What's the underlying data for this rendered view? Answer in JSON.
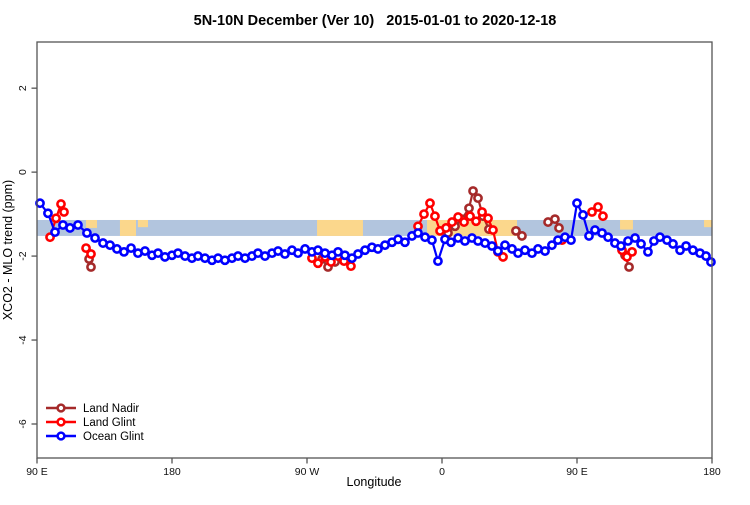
{
  "legend": {
    "items": [
      {
        "label": "Land Nadir",
        "color": "#A52A2A"
      },
      {
        "label": "Land Glint",
        "color": "#FF0000"
      },
      {
        "label": "Ocean Glint",
        "color": "#0000FF"
      }
    ]
  },
  "chart_data": {
    "type": "line",
    "marker": "open-circle",
    "title": "5N-10N December (Ver 10)   2015-01-01 to 2020-12-18",
    "xlabel": "Longitude",
    "ylabel": "XCO2 - MLO trend (ppm)",
    "xlim": [
      -270,
      180
    ],
    "ylim": [
      -6.81,
      3.1
    ],
    "grid": false,
    "x_ticks": [
      {
        "lon": -270,
        "label": "90 E"
      },
      {
        "lon": -180,
        "label": "180"
      },
      {
        "lon": -90,
        "label": "90 W"
      },
      {
        "lon": 0,
        "label": "0"
      },
      {
        "lon": 90,
        "label": "90 E"
      },
      {
        "lon": 180,
        "label": "180"
      }
    ],
    "y_ticks": [
      {
        "v": 2,
        "label": "2"
      },
      {
        "v": 0,
        "label": "0"
      },
      {
        "v": -2,
        "label": "-2"
      },
      {
        "v": -4,
        "label": "-4"
      },
      {
        "v": -6,
        "label": "-6"
      }
    ],
    "reference_band": {
      "description": "5N-10N latitude map strip: ocean with land silhouettes",
      "ocean_color": "#B2C5DE",
      "land_color": "#FBD78C",
      "v_top": -1.14,
      "v_bottom": -1.52,
      "land_segments": [
        {
          "lon1": -237.3,
          "lon2": -230.0,
          "frac": 0.5,
          "anchor": "top"
        },
        {
          "lon1": -214.7,
          "lon2": -204.0,
          "frac": 1.0,
          "anchor": "top"
        },
        {
          "lon1": -202.7,
          "lon2": -196.0,
          "frac": 0.45,
          "anchor": "top"
        },
        {
          "lon1": -83.3,
          "lon2": -52.7,
          "frac": 1.0,
          "anchor": "top"
        },
        {
          "lon1": -10.0,
          "lon2": 50.0,
          "frac": 1.0,
          "anchor": "top"
        },
        {
          "lon1": 118.7,
          "lon2": 127.3,
          "frac": 0.6,
          "anchor": "top"
        },
        {
          "lon1": 174.7,
          "lon2": 180.0,
          "frac": 0.45,
          "anchor": "top"
        }
      ]
    },
    "series": [
      {
        "name": "Land Nadir",
        "color": "#A52A2A",
        "clusters": [
          [
            [
              -235.3,
              -2.07
            ],
            [
              -234,
              -2.26
            ]
          ],
          [
            [
              -80,
              -2.07
            ],
            [
              -76,
              -2.26
            ],
            [
              -71.3,
              -2.14
            ]
          ],
          [
            [
              4,
              -1.45
            ],
            [
              8.7,
              -1.29
            ],
            [
              13.3,
              -1.12
            ],
            [
              18,
              -0.86
            ],
            [
              20.7,
              -0.45
            ],
            [
              24,
              -0.62
            ],
            [
              27.3,
              -1.05
            ],
            [
              31.3,
              -1.36
            ]
          ],
          [
            [
              49.3,
              -1.4
            ],
            [
              53.3,
              -1.52
            ]
          ],
          [
            [
              70.7,
              -1.19
            ],
            [
              75.3,
              -1.12
            ],
            [
              78,
              -1.33
            ]
          ],
          [
            [
              122,
              -1.98
            ],
            [
              124.7,
              -2.26
            ]
          ]
        ]
      },
      {
        "name": "Land Glint",
        "color": "#FF0000",
        "clusters": [
          [
            [
              -261.3,
              -1.55
            ],
            [
              -257.3,
              -1.1
            ],
            [
              -254,
              -0.76
            ],
            [
              -252,
              -0.95
            ]
          ],
          [
            [
              -237.3,
              -1.81
            ],
            [
              -234,
              -1.95
            ]
          ],
          [
            [
              -86.7,
              -2.05
            ],
            [
              -82.7,
              -2.17
            ],
            [
              -78,
              -2.02
            ],
            [
              -74,
              -2.14
            ],
            [
              -69.3,
              -2.0
            ],
            [
              -65.3,
              -2.12
            ],
            [
              -60.7,
              -2.24
            ]
          ],
          [
            [
              -16,
              -1.29
            ],
            [
              -12,
              -1.0
            ],
            [
              -8,
              -0.74
            ],
            [
              -4.7,
              -1.05
            ],
            [
              -1.3,
              -1.4
            ],
            [
              2.7,
              -1.33
            ],
            [
              6.7,
              -1.19
            ],
            [
              10.7,
              -1.07
            ],
            [
              14.7,
              -1.19
            ],
            [
              18.7,
              -1.05
            ],
            [
              22.7,
              -1.17
            ],
            [
              26.7,
              -0.95
            ],
            [
              30.7,
              -1.1
            ],
            [
              34,
              -1.38
            ],
            [
              37.3,
              -1.9
            ],
            [
              40.7,
              -2.02
            ]
          ],
          [
            [
              80,
              -1.62
            ]
          ],
          [
            [
              100,
              -0.95
            ],
            [
              104,
              -0.83
            ],
            [
              107.3,
              -1.05
            ]
          ],
          [
            [
              120,
              -1.86
            ],
            [
              123.3,
              -2.02
            ],
            [
              126.7,
              -1.9
            ]
          ]
        ]
      },
      {
        "name": "Ocean Glint",
        "color": "#0000FF",
        "clusters": [
          [
            [
              -268,
              -0.74
            ],
            [
              -262.7,
              -0.98
            ],
            [
              -258,
              -1.43
            ],
            [
              -252.7,
              -1.26
            ],
            [
              -248,
              -1.33
            ],
            [
              -242.7,
              -1.26
            ],
            [
              -236.7,
              -1.45
            ],
            [
              -231.3,
              -1.57
            ],
            [
              -226,
              -1.69
            ],
            [
              -221.3,
              -1.74
            ],
            [
              -216.7,
              -1.83
            ],
            [
              -212,
              -1.9
            ],
            [
              -207.3,
              -1.81
            ],
            [
              -202.7,
              -1.93
            ],
            [
              -198,
              -1.88
            ],
            [
              -193.3,
              -1.98
            ],
            [
              -189.3,
              -1.93
            ],
            [
              -184.7,
              -2.02
            ],
            [
              -180,
              -1.98
            ],
            [
              -176,
              -1.93
            ],
            [
              -171.3,
              -2.0
            ],
            [
              -166.7,
              -2.05
            ],
            [
              -162.7,
              -2.0
            ],
            [
              -158,
              -2.05
            ],
            [
              -153.3,
              -2.1
            ],
            [
              -149.3,
              -2.05
            ],
            [
              -144.7,
              -2.1
            ],
            [
              -140,
              -2.05
            ],
            [
              -136,
              -2.0
            ],
            [
              -131.3,
              -2.05
            ],
            [
              -126.7,
              -2.0
            ],
            [
              -122.7,
              -1.93
            ],
            [
              -118,
              -2.0
            ],
            [
              -113.3,
              -1.93
            ],
            [
              -109.3,
              -1.88
            ],
            [
              -104.7,
              -1.95
            ],
            [
              -100,
              -1.86
            ],
            [
              -96,
              -1.93
            ],
            [
              -91.3,
              -1.83
            ],
            [
              -86.7,
              -1.9
            ],
            [
              -82.7,
              -1.86
            ],
            [
              -78,
              -1.93
            ],
            [
              -73.3,
              -1.98
            ],
            [
              -69.3,
              -1.9
            ],
            [
              -64.7,
              -1.98
            ],
            [
              -60,
              -2.05
            ],
            [
              -56,
              -1.95
            ],
            [
              -51.3,
              -1.86
            ],
            [
              -46.7,
              -1.79
            ],
            [
              -42.7,
              -1.83
            ],
            [
              -38,
              -1.74
            ],
            [
              -33.3,
              -1.67
            ],
            [
              -29.3,
              -1.6
            ],
            [
              -24.7,
              -1.67
            ],
            [
              -20,
              -1.52
            ],
            [
              -16,
              -1.45
            ],
            [
              -11.3,
              -1.55
            ],
            [
              -6.7,
              -1.62
            ],
            [
              -2.7,
              -2.12
            ],
            [
              2,
              -1.6
            ],
            [
              6,
              -1.67
            ],
            [
              10.7,
              -1.57
            ],
            [
              15.3,
              -1.64
            ],
            [
              20,
              -1.57
            ],
            [
              24,
              -1.64
            ],
            [
              28.7,
              -1.69
            ],
            [
              33.3,
              -1.76
            ],
            [
              37.3,
              -1.88
            ],
            [
              42,
              -1.74
            ],
            [
              46.7,
              -1.83
            ],
            [
              50.7,
              -1.93
            ],
            [
              55.3,
              -1.86
            ],
            [
              60,
              -1.93
            ],
            [
              64,
              -1.83
            ],
            [
              68.7,
              -1.88
            ],
            [
              73.3,
              -1.74
            ],
            [
              77.3,
              -1.62
            ],
            [
              82,
              -1.55
            ],
            [
              86,
              -1.62
            ],
            [
              90,
              -0.74
            ],
            [
              94,
              -1.02
            ],
            [
              98,
              -1.52
            ],
            [
              102,
              -1.38
            ],
            [
              106.7,
              -1.45
            ],
            [
              110.7,
              -1.55
            ],
            [
              115.3,
              -1.69
            ],
            [
              119.3,
              -1.76
            ],
            [
              124,
              -1.64
            ],
            [
              128.7,
              -1.57
            ],
            [
              132.7,
              -1.71
            ],
            [
              137.3,
              -1.9
            ],
            [
              141.3,
              -1.64
            ],
            [
              145.3,
              -1.55
            ],
            [
              150,
              -1.62
            ],
            [
              154,
              -1.71
            ],
            [
              158.7,
              -1.86
            ],
            [
              162.7,
              -1.76
            ],
            [
              167.3,
              -1.86
            ],
            [
              172,
              -1.93
            ],
            [
              176,
              -2.0
            ],
            [
              179.3,
              -2.14
            ]
          ]
        ]
      }
    ]
  }
}
